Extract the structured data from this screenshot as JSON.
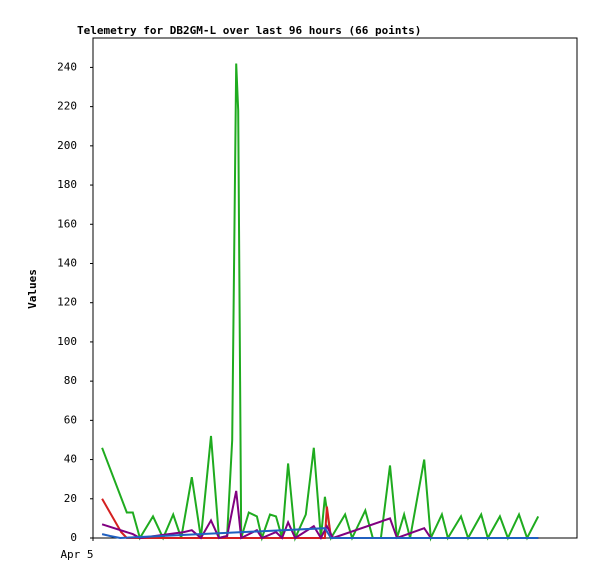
{
  "chart_data": {
    "type": "line",
    "title": "Telemetry for DB2GM-L over last 96 hours (66 points)",
    "y_label": "Values",
    "xlim": [
      0,
      96
    ],
    "xticks": [
      {
        "value": 0,
        "label": "Apr 5"
      }
    ],
    "ylim": [
      0,
      255
    ],
    "yticks": [
      0,
      20,
      40,
      60,
      80,
      100,
      120,
      140,
      160,
      180,
      200,
      220,
      240
    ],
    "grid": false,
    "series": [
      {
        "color": "#1fab1f",
        "x": [
          1.8,
          6.7,
          7.9,
          9.3,
          11.9,
          13.9,
          15.9,
          17.5,
          19.6,
          21.4,
          23.4,
          25.0,
          26.6,
          27.6,
          28.4,
          28.8,
          29.4,
          30.9,
          32.5,
          33.5,
          35.1,
          36.3,
          37.5,
          38.7,
          40.1,
          42.2,
          43.8,
          45.2,
          46.0,
          47.2,
          50.0,
          51.4,
          54.0,
          55.5,
          57.1,
          58.9,
          60.3,
          61.7,
          62.9,
          65.7,
          67.0,
          69.2,
          70.4,
          73.0,
          74.4,
          77.0,
          78.3,
          80.7,
          82.3,
          84.5,
          86.1,
          88.3
        ],
        "values": [
          46,
          13,
          13,
          0,
          11,
          0,
          12,
          0,
          31,
          0,
          52,
          0,
          1,
          50,
          242,
          218,
          0,
          13,
          11,
          0,
          12,
          11,
          0,
          38,
          0,
          12,
          46,
          0,
          21,
          0,
          12,
          0,
          14,
          0,
          0,
          37,
          0,
          12,
          0,
          40,
          0,
          12,
          0,
          11,
          0,
          12,
          0,
          11,
          0,
          12,
          0,
          11
        ]
      },
      {
        "color": "#d42020",
        "x": [
          1.8,
          5.6,
          6.7,
          46.0,
          46.4,
          47.2,
          88.3
        ],
        "values": [
          20,
          3,
          0,
          0,
          16,
          0,
          0
        ]
      },
      {
        "color": "#800080",
        "x": [
          1.8,
          7.9,
          9.3,
          18.0,
          19.6,
          21.4,
          23.4,
          25.0,
          26.6,
          28.4,
          29.4,
          32.5,
          33.5,
          36.3,
          37.5,
          38.7,
          40.1,
          43.8,
          45.2,
          46.4,
          47.6,
          58.9,
          60.3,
          65.7,
          67.0,
          88.3
        ],
        "values": [
          7,
          2,
          0,
          3,
          4,
          0,
          9,
          0,
          1,
          24,
          0,
          4,
          0,
          3,
          0,
          8,
          0,
          6,
          0,
          6,
          0,
          10,
          0,
          5,
          0,
          0
        ]
      },
      {
        "color": "#2060c0",
        "x": [
          1.8,
          3.4,
          5.4,
          46.0,
          47.2,
          88.3
        ],
        "values": [
          2,
          1,
          0,
          5,
          0,
          0
        ]
      }
    ]
  }
}
